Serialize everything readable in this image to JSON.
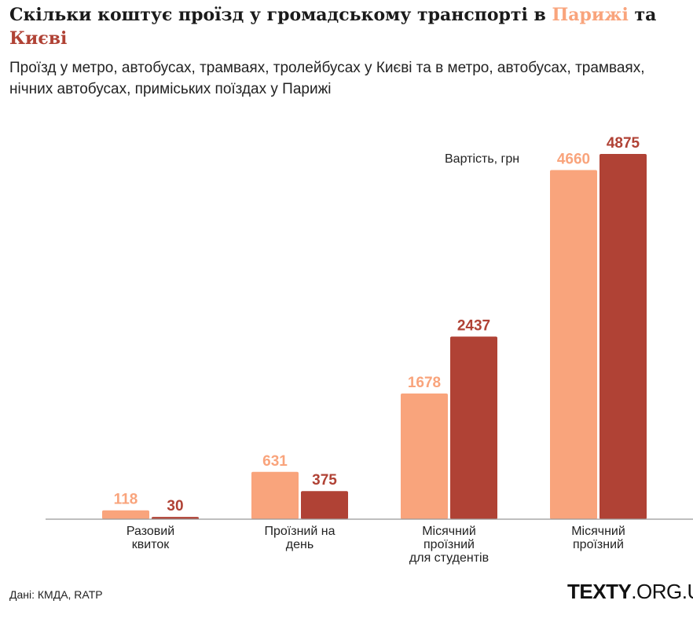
{
  "header": {
    "title_prefix": "Скільки коштує проїзд у громадському транспорті в ",
    "title_city1": "Парижі",
    "title_mid": " та",
    "title_city2": "Києві",
    "subtitle": "Проїзд у метро, автобусах, трамваях, тролейбусах у Києві та в метро, автобусах, трамваях, нічних автобусах, приміських поїздах у Парижі"
  },
  "footer": {
    "source": "Дані: КМДА, RATP",
    "logo_bold": "TEXTY",
    "logo_rest": ".ORG.UA"
  },
  "colors": {
    "paris": "#f9a47c",
    "kyiv": "#b04235",
    "axis": "#999999"
  },
  "chart_data": {
    "type": "bar",
    "title": "Скільки коштує проїзд у громадському транспорті в Парижі та Києві",
    "ylabel": "Вартість, грн",
    "ylim": [
      0,
      4875
    ],
    "grid": false,
    "categories": [
      [
        "Разовий",
        "квиток"
      ],
      [
        "Проїзний на",
        "день"
      ],
      [
        "Місячний",
        "проїзний",
        "для студентів"
      ],
      [
        "Місячний",
        "проїзний"
      ]
    ],
    "series": [
      {
        "name": "Парижі",
        "color": "#f9a47c",
        "values": [
          118,
          631,
          1678,
          4660
        ]
      },
      {
        "name": "Києві",
        "color": "#b04235",
        "values": [
          30,
          375,
          2437,
          4875
        ]
      }
    ]
  }
}
